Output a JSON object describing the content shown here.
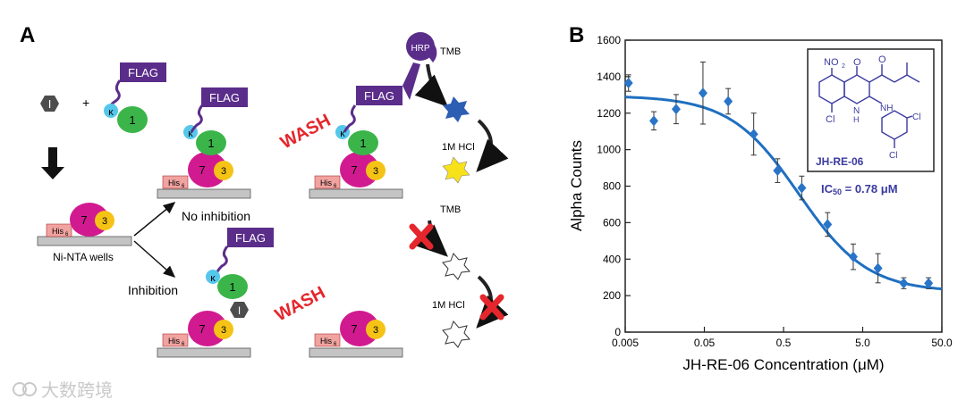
{
  "panel_a": {
    "panel_label": "A",
    "inhibitor": "I",
    "plus": "+",
    "flag": "FLAG",
    "kappa": "κ",
    "protein_1": "1",
    "protein_7": "7",
    "protein_3": "3",
    "his_tag": "His",
    "his_sub": "6",
    "wells_label": "Ni-NTA wells",
    "no_inhibition": "No inhibition",
    "inhibition": "Inhibition",
    "wash": "WASH",
    "hrp": "HRP",
    "tmb": "TMB",
    "hcl": "1M HCl"
  },
  "panel_b": {
    "panel_label": "B"
  },
  "compound": {
    "no2": "NO",
    "no2_sub": "2",
    "o1": "O",
    "o2": "O",
    "cl": "Cl",
    "n": "N",
    "h": "H",
    "nh": "NH",
    "name": "JH-RE-06",
    "ic50_prefix": "IC",
    "ic50_sub": "50",
    "ic50_value": " = 0.78 μM"
  },
  "watermark": "大数跨境",
  "colors": {
    "curve": "#1f6fc0",
    "points": "#2a74c8",
    "structure": "#3a3aa0",
    "flag": "#5a2d8a",
    "wash": "#e5262c"
  },
  "chart_data": {
    "type": "scatter",
    "title": "",
    "xlabel": "JH-RE-06 Concentration (μM)",
    "ylabel": "Alpha Counts",
    "xscale": "log",
    "xlim": [
      0.005,
      50.0
    ],
    "ylim": [
      0,
      1600
    ],
    "xticks": [
      "0.005",
      "0.05",
      "0.5",
      "5.0",
      "50.0"
    ],
    "yticks": [
      "0",
      "200",
      "400",
      "600",
      "800",
      "1000",
      "1200",
      "1400",
      "1600"
    ],
    "points": [
      {
        "x": 0.0055,
        "y": 1365,
        "err": 45
      },
      {
        "x": 0.0115,
        "y": 1158,
        "err": 50
      },
      {
        "x": 0.022,
        "y": 1222,
        "err": 80
      },
      {
        "x": 0.048,
        "y": 1310,
        "err": 170
      },
      {
        "x": 0.1,
        "y": 1265,
        "err": 70
      },
      {
        "x": 0.21,
        "y": 1085,
        "err": 115
      },
      {
        "x": 0.42,
        "y": 885,
        "err": 65
      },
      {
        "x": 0.85,
        "y": 790,
        "err": 65
      },
      {
        "x": 1.8,
        "y": 590,
        "err": 65
      },
      {
        "x": 3.8,
        "y": 413,
        "err": 70
      },
      {
        "x": 7.8,
        "y": 350,
        "err": 80
      },
      {
        "x": 16.5,
        "y": 268,
        "err": 30
      },
      {
        "x": 34,
        "y": 268,
        "err": 30
      }
    ],
    "fit": {
      "model": "four-parameter logistic",
      "top": 1295,
      "bottom": 220,
      "ic50": 0.78,
      "hill": 1.0
    }
  }
}
